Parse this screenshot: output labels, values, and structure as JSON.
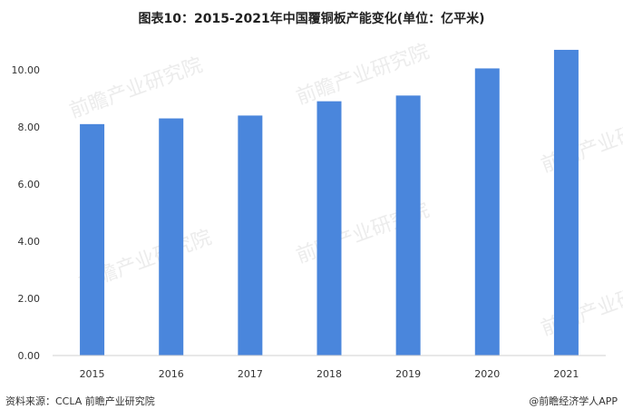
{
  "title": "图表10：2015-2021年中国覆铜板产能变化(单位：亿平米)",
  "chart_data": {
    "type": "bar",
    "title": "图表10：2015-2021年中国覆铜板产能变化(单位：亿平米)",
    "categories": [
      "2015",
      "2016",
      "2017",
      "2018",
      "2019",
      "2020",
      "2021"
    ],
    "values": [
      8.1,
      8.3,
      8.4,
      8.9,
      9.1,
      10.05,
      10.7
    ],
    "ylim": [
      0,
      10
    ],
    "yticks": [
      "0.00",
      "2.00",
      "4.00",
      "6.00",
      "8.00",
      "10.00"
    ],
    "xlabel": "",
    "ylabel": "",
    "grid": false,
    "bar_color": "#4a86dc"
  },
  "footer": {
    "source": "资料来源：CCLA 前瞻产业研究院",
    "brand": "@前瞻经济学人APP"
  },
  "watermark": "前瞻产业研究院"
}
